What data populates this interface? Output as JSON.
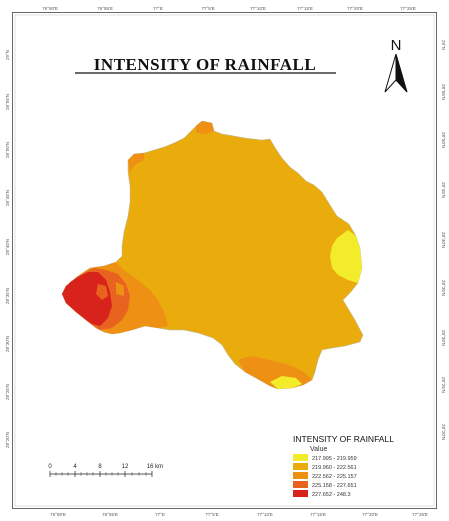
{
  "map": {
    "title": "INTENSITY OF RAINFALL",
    "north_label": "N",
    "top_ticks": [
      "76°50'E",
      "76°55'E",
      "77°E",
      "77°5'E",
      "77°10'E",
      "77°15'E",
      "77°20'E",
      "77°25'E"
    ],
    "bottom_ticks": [
      "76°50'E",
      "76°55'E",
      "77°E",
      "77°5'E",
      "77°10'E",
      "77°15'E",
      "77°20'E",
      "77°25'E"
    ],
    "left_ticks": [
      "29°N",
      "28°55'N",
      "28°50'N",
      "28°45'N",
      "28°40'N",
      "28°35'N",
      "28°30'N",
      "28°25'N",
      "28°20'N"
    ],
    "right_ticks": [
      "29°N",
      "28°55'N",
      "28°50'N",
      "28°45'N",
      "28°40'N",
      "28°35'N",
      "28°30'N",
      "28°25'N",
      "28°20'N"
    ],
    "legend": {
      "title": "INTENSITY OF RAINFALL",
      "subtitle": "Value",
      "items": [
        {
          "label": "217.995 - 219.959",
          "color": "#f2ec2a"
        },
        {
          "label": "219.960 - 222.561",
          "color": "#e9ac0c"
        },
        {
          "label": "222.562 - 225.157",
          "color": "#ee9014"
        },
        {
          "label": "225.158 - 227.651",
          "color": "#e8631f"
        },
        {
          "label": "227.652 - 248.3",
          "color": "#d8231c"
        }
      ]
    },
    "scale_bar": {
      "labels": [
        "0",
        "4",
        "8",
        "12",
        "16 km"
      ]
    }
  }
}
